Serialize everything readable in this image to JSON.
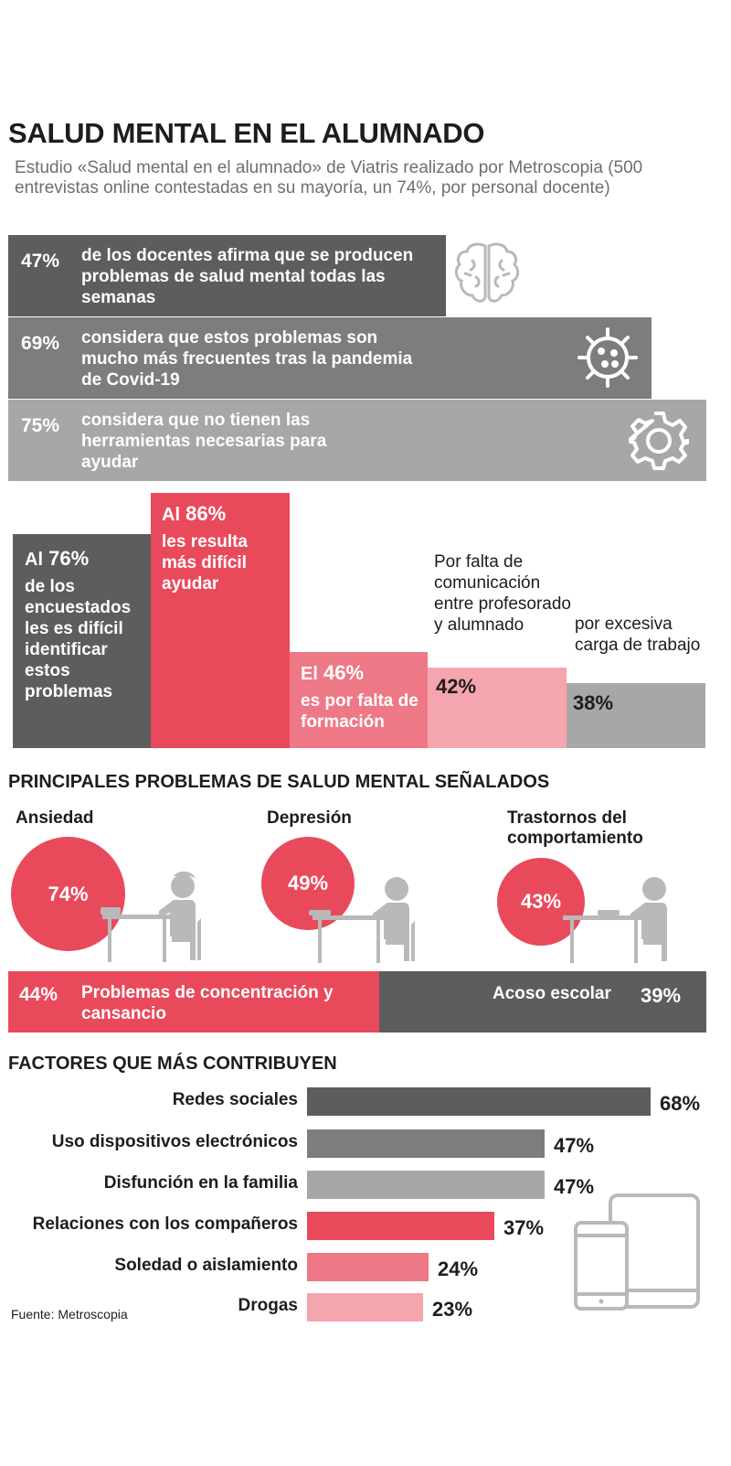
{
  "title": "SALUD MENTAL EN EL ALUMNADO",
  "subtitle": "Estudio «Salud mental en el alumnado» de Viatris realizado por Metroscopia (500 entrevistas online contestadas en su mayoría, un 74%, por personal docente)",
  "top_stats": [
    {
      "pct": "47%",
      "text": "de los docentes afirma que se producen problemas de salud mental todas las semanas",
      "icon": "brain-icon",
      "color": "#5d5d5d"
    },
    {
      "pct": "69%",
      "text": "considera que estos problemas son mucho más frecuentes tras la pandemia de Covid-19",
      "icon": "virus-icon",
      "color": "#7d7d7d"
    },
    {
      "pct": "75%",
      "text": "considera que no tienen las herramientas necesarias para ayudar",
      "icon": "gear-icon",
      "color": "#a7a7a7"
    }
  ],
  "difficulty": {
    "c1": {
      "prefix": "Al",
      "pct": "76%",
      "text": "de los encuestados les es difícil identificar estos problemas"
    },
    "c2": {
      "prefix": "Al",
      "pct": "86%",
      "text": "les resulta más difícil ayudar"
    },
    "c3": {
      "prefix": "El",
      "pct": "46%",
      "text": "es por falta de formación"
    },
    "c4": {
      "pct": "42%",
      "text": "Por falta de comunicación entre profesorado y alumnado"
    },
    "c5": {
      "pct": "38%",
      "text": "por excesiva carga de trabajo"
    }
  },
  "problems": {
    "heading": "PRINCIPALES PROBLEMAS DE SALUD MENTAL SEÑALADOS",
    "items": [
      {
        "label": "Ansiedad",
        "pct": "74%"
      },
      {
        "label": "Depresión",
        "pct": "49%"
      },
      {
        "label": "Trastornos del comportamiento",
        "pct": "43%"
      }
    ],
    "left": {
      "pct": "44%",
      "label": "Problemas de concentración y cansancio"
    },
    "right": {
      "pct": "39%",
      "label": "Acoso escolar"
    }
  },
  "factors_heading": "FACTORES QUE MÁS CONTRIBUYEN",
  "source": "Fuente: Metroscopia",
  "colors": {
    "red": "#e94a5b",
    "dark_gray": "#5d5d5d",
    "mid_gray": "#7d7d7d",
    "light_gray": "#a7a7a7",
    "pink": "#ef7886",
    "light_pink": "#f5a5ae"
  },
  "chart_data": [
    {
      "type": "bar",
      "categories": [
        "Al 76%",
        "Al 86%",
        "El 46%",
        "42%",
        "38%"
      ],
      "values": [
        76,
        86,
        46,
        42,
        38
      ]
    },
    {
      "type": "bar",
      "title": "FACTORES QUE MÁS CONTRIBUYEN",
      "categories": [
        "Redes sociales",
        "Uso dispositivos electrónicos",
        "Disfunción en la familia",
        "Relaciones con los compañeros",
        "Soledad o aislamiento",
        "Drogas"
      ],
      "values": [
        68,
        47,
        47,
        37,
        24,
        23
      ],
      "value_labels": [
        "68%",
        "47%",
        "47%",
        "37%",
        "24%",
        "23%"
      ],
      "colors": [
        "#5d5d5d",
        "#7d7d7d",
        "#a7a7a7",
        "#e94a5b",
        "#ef7886",
        "#f5a5ae"
      ]
    }
  ]
}
